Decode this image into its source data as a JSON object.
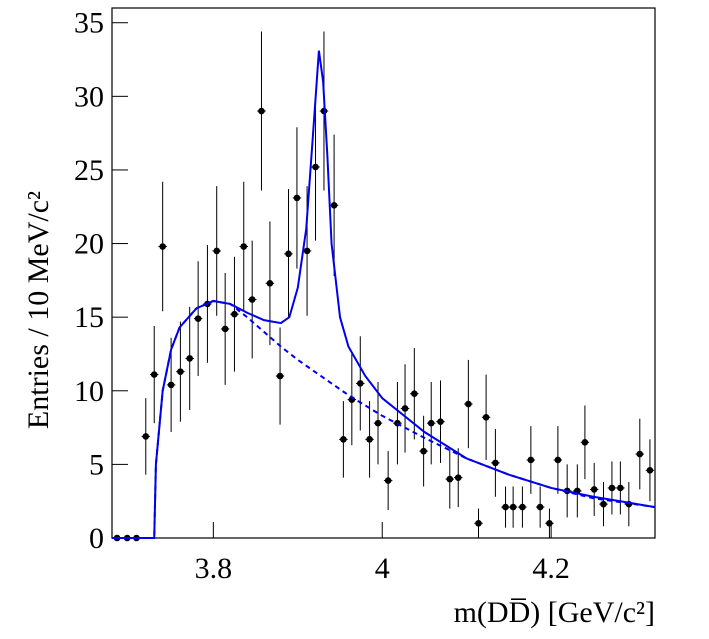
{
  "chart_data": {
    "type": "errorbar",
    "xlabel": "m(DD̅) [GeV/c²]",
    "ylabel": "Entries / 10 MeV/c²",
    "xlim": [
      3.68,
      4.323
    ],
    "ylim": [
      0,
      36
    ],
    "xticks": [
      3.8,
      4,
      4.2
    ],
    "yticks": [
      0,
      5,
      10,
      15,
      20,
      25,
      30,
      35
    ],
    "series": [
      {
        "type": "errorbar",
        "color": "#000000",
        "xerr": 0.005,
        "x": [
          3.686,
          3.698,
          3.709,
          3.72,
          3.73,
          3.74,
          3.75,
          3.761,
          3.772,
          3.782,
          3.793,
          3.804,
          3.814,
          3.825,
          3.836,
          3.846,
          3.857,
          3.867,
          3.879,
          3.889,
          3.899,
          3.911,
          3.921,
          3.931,
          3.943,
          3.954,
          3.964,
          3.974,
          3.985,
          3.995,
          4.007,
          4.018,
          4.027,
          4.038,
          4.049,
          4.058,
          4.069,
          4.08,
          4.09,
          4.102,
          4.114,
          4.123,
          4.134,
          4.146,
          4.155,
          4.166,
          4.176,
          4.187,
          4.198,
          4.208,
          4.219,
          4.231,
          4.24,
          4.251,
          4.262,
          4.272,
          4.282,
          4.292,
          4.305,
          4.317
        ],
        "values": [
          0,
          0,
          0,
          6.9,
          11.1,
          19.8,
          10.4,
          11.3,
          12.2,
          14.9,
          15.9,
          19.5,
          14.2,
          15.2,
          19.8,
          16.2,
          29.0,
          17.3,
          11.0,
          19.3,
          23.1,
          19.5,
          25.2,
          29.0,
          22.6,
          6.7,
          9.4,
          10.5,
          6.7,
          7.8,
          3.9,
          7.8,
          8.8,
          9.8,
          5.9,
          7.8,
          7.9,
          4.0,
          4.1,
          9.1,
          1.0,
          8.2,
          5.1,
          2.1,
          2.1,
          2.1,
          5.3,
          2.1,
          1.0,
          5.3,
          3.2,
          3.2,
          6.5,
          3.3,
          2.3,
          3.4,
          3.4,
          2.3,
          5.7,
          4.6
        ],
        "errors": [
          0,
          0,
          0,
          2.6,
          3.3,
          4.4,
          3.2,
          3.4,
          3.5,
          3.9,
          4.0,
          4.4,
          3.8,
          3.9,
          4.4,
          4.0,
          5.4,
          4.2,
          3.3,
          4.4,
          4.8,
          4.4,
          5.0,
          5.4,
          4.8,
          2.6,
          3.1,
          3.2,
          2.6,
          2.8,
          2.0,
          2.8,
          3.0,
          3.1,
          2.4,
          2.8,
          2.8,
          2.0,
          2.0,
          3.0,
          1.0,
          2.9,
          2.3,
          1.4,
          1.4,
          1.4,
          2.3,
          1.4,
          1.0,
          2.3,
          1.8,
          1.8,
          2.5,
          1.8,
          1.5,
          1.8,
          1.8,
          1.5,
          2.4,
          2.1
        ]
      },
      {
        "type": "line",
        "color": "#0000ee",
        "dash": false,
        "x": [
          3.68,
          3.73,
          3.732,
          3.74,
          3.75,
          3.76,
          3.78,
          3.8,
          3.82,
          3.84,
          3.86,
          3.88,
          3.89,
          3.9,
          3.91,
          3.92,
          3.925,
          3.93,
          3.935,
          3.94,
          3.95,
          3.96,
          3.98,
          4,
          4.05,
          4.1,
          4.15,
          4.2,
          4.25,
          4.323
        ],
        "values": [
          0,
          0,
          5,
          10,
          12.8,
          14.3,
          15.6,
          16.1,
          15.9,
          15.3,
          14.8,
          14.6,
          15.0,
          17,
          21,
          29,
          33.1,
          31,
          26,
          20,
          15,
          13,
          11,
          9.5,
          7.2,
          5.4,
          4.3,
          3.4,
          2.8,
          2.1
        ]
      },
      {
        "type": "line",
        "color": "#0000ee",
        "dash": true,
        "x": [
          3.68,
          3.73,
          3.732,
          3.74,
          3.75,
          3.76,
          3.78,
          3.8,
          3.82,
          3.84,
          3.86,
          3.88,
          3.9,
          3.92,
          3.94,
          3.96,
          3.98,
          4,
          4.05,
          4.1,
          4.15,
          4.2,
          4.25,
          4.323
        ],
        "values": [
          0,
          0,
          5,
          10,
          12.8,
          14.3,
          15.6,
          16.1,
          15.9,
          15.0,
          14.0,
          13.0,
          12.1,
          11.3,
          10.5,
          9.7,
          9.0,
          8.3,
          6.8,
          5.4,
          4.3,
          3.4,
          2.7,
          2.1
        ]
      }
    ]
  }
}
